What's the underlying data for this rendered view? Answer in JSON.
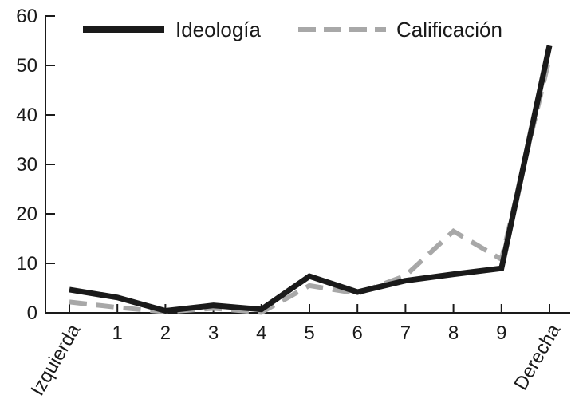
{
  "chart_data": {
    "type": "line",
    "categories": [
      "Izquierda",
      "1",
      "2",
      "3",
      "4",
      "5",
      "6",
      "7",
      "8",
      "9",
      "Derecha"
    ],
    "ylim": [
      0,
      60
    ],
    "yticks": [
      0,
      10,
      20,
      30,
      40,
      50,
      60
    ],
    "legend_position": "top",
    "grid": false,
    "series": [
      {
        "name": "Ideología",
        "color": "#1a1a1a",
        "style": "solid",
        "values": [
          4.7,
          3.1,
          0.4,
          1.5,
          0.7,
          7.4,
          4.2,
          6.5,
          7.8,
          9.0,
          54.0
        ]
      },
      {
        "name": "Calificación",
        "color": "#a8a8a8",
        "style": "dashed",
        "values": [
          2.2,
          1.1,
          0.2,
          0.9,
          0.1,
          5.5,
          3.9,
          7.5,
          16.5,
          10.8,
          51.5
        ]
      }
    ]
  }
}
